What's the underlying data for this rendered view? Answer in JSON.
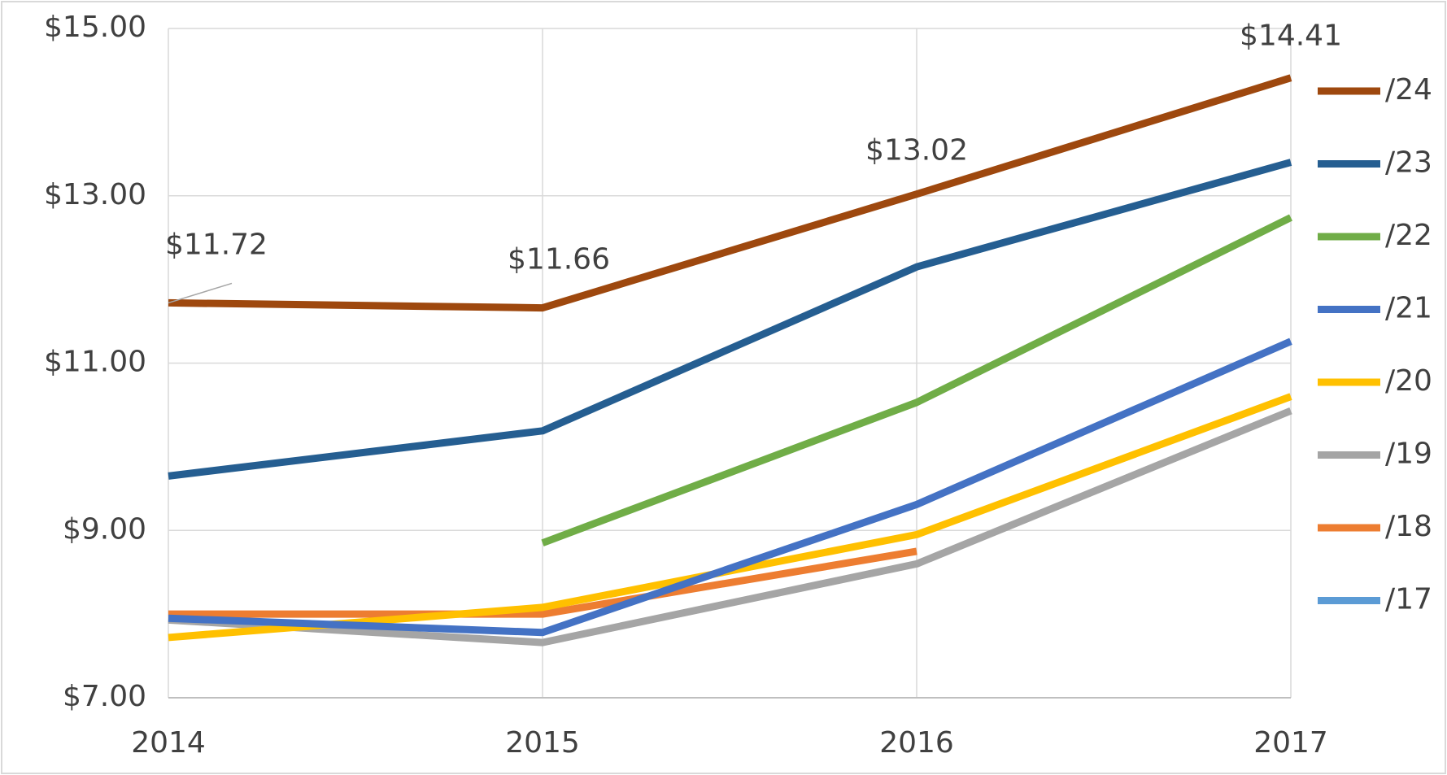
{
  "chart_data": {
    "type": "line",
    "categories": [
      "2014",
      "2015",
      "2016",
      "2017"
    ],
    "series": [
      {
        "name": "/24",
        "color": "#9e480e",
        "values": [
          11.72,
          11.66,
          13.02,
          14.41
        ],
        "value_labels": [
          "$11.72",
          "$11.66",
          "$13.02",
          "$14.41"
        ]
      },
      {
        "name": "/23",
        "color": "#255e91",
        "values": [
          9.65,
          10.19,
          12.15,
          13.4
        ]
      },
      {
        "name": "/22",
        "color": "#70ad47",
        "values": [
          null,
          8.85,
          10.53,
          12.74
        ]
      },
      {
        "name": "/21",
        "color": "#4472c4",
        "values": [
          7.95,
          7.78,
          9.31,
          11.26
        ]
      },
      {
        "name": "/20",
        "color": "#ffc000",
        "values": [
          7.72,
          8.08,
          8.95,
          10.6
        ]
      },
      {
        "name": "/19",
        "color": "#a5a5a5",
        "values": [
          7.93,
          7.66,
          8.6,
          10.43
        ]
      },
      {
        "name": "/18",
        "color": "#ed7d31",
        "values": [
          8.0,
          8.0,
          8.75,
          null
        ]
      },
      {
        "name": "/17",
        "color": "#5b9bd5",
        "values": [
          null,
          null,
          null,
          null
        ]
      }
    ],
    "ylim": [
      7,
      15
    ],
    "yticks": [
      {
        "value": 7,
        "label": "$7.00"
      },
      {
        "value": 9,
        "label": "$9.00"
      },
      {
        "value": 11,
        "label": "$11.00"
      },
      {
        "value": 13,
        "label": "$13.00"
      },
      {
        "value": 15,
        "label": "$15.00"
      }
    ],
    "grid": true
  }
}
